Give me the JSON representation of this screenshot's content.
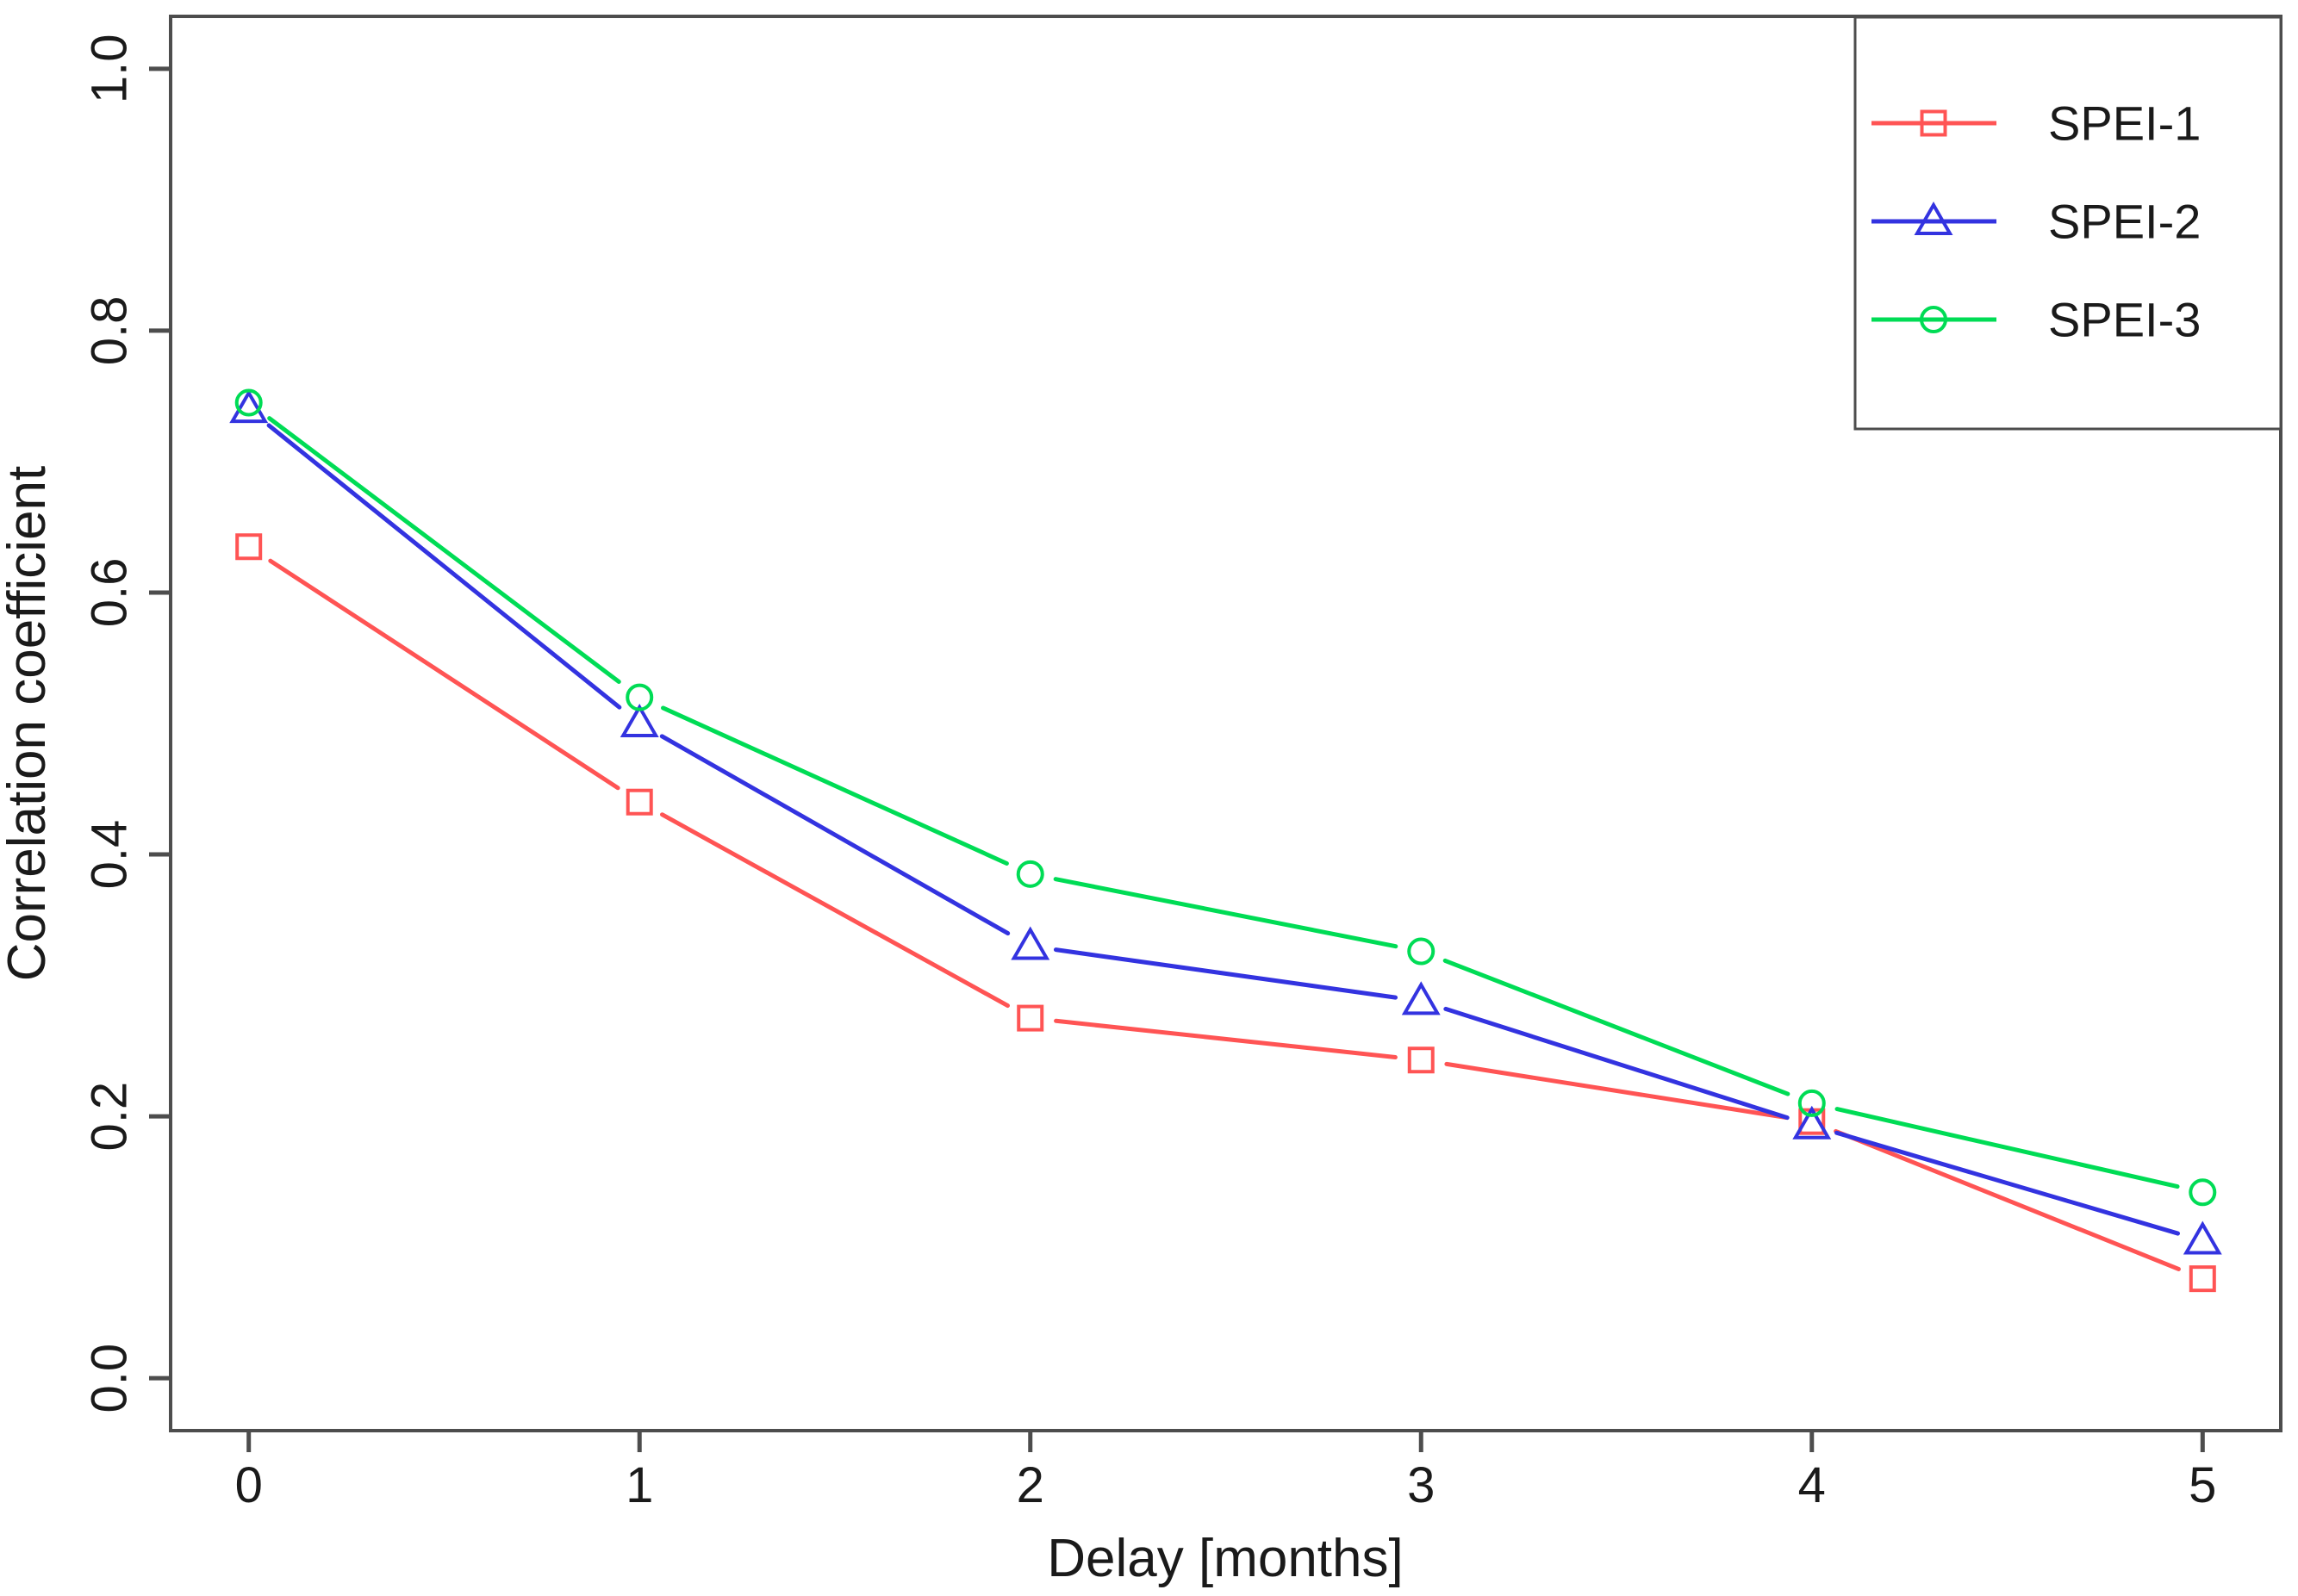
{
  "figure": {
    "background": "#ffffff",
    "axis_color": "#4d4d4d",
    "text_color": "#1a1a1a"
  },
  "chart_data": {
    "type": "line",
    "title": "",
    "xlabel": "Delay [months]",
    "ylabel": "Correlation coefficient",
    "x": [
      0,
      1,
      2,
      3,
      4,
      5
    ],
    "xtick_labels": [
      "0",
      "1",
      "2",
      "3",
      "4",
      "5"
    ],
    "ytick_values": [
      0.0,
      0.2,
      0.4,
      0.6,
      0.8,
      1.0
    ],
    "ytick_labels": [
      "0.0",
      "0.2",
      "0.4",
      "0.6",
      "0.8",
      "1.0"
    ],
    "xlim": [
      -0.2,
      5.2
    ],
    "ylim": [
      -0.04,
      1.04
    ],
    "grid": false,
    "legend_position": "top-right",
    "series": [
      {
        "name": "SPEI-1",
        "color": "#FF5454",
        "marker": "square",
        "values": [
          0.635,
          0.44,
          0.275,
          0.243,
          0.196,
          0.076
        ]
      },
      {
        "name": "SPEI-2",
        "color": "#3333E0",
        "marker": "triangle",
        "values": [
          0.74,
          0.5,
          0.33,
          0.288,
          0.193,
          0.105
        ]
      },
      {
        "name": "SPEI-3",
        "color": "#00DC55",
        "marker": "circle",
        "values": [
          0.745,
          0.52,
          0.385,
          0.326,
          0.21,
          0.142
        ]
      }
    ]
  }
}
